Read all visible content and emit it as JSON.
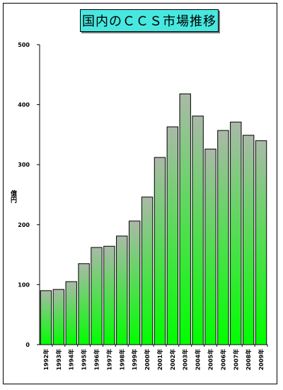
{
  "chart_data": {
    "type": "bar",
    "title": "国内のＣＣＳ市場推移",
    "ylabel": "億円",
    "xlabel": "",
    "ylim": [
      0,
      500
    ],
    "yticks": [
      0,
      100,
      200,
      300,
      400,
      500
    ],
    "categories": [
      "1992年",
      "1993年",
      "1994年",
      "1995年",
      "1996年",
      "1997年",
      "1998年",
      "1999年",
      "2000年",
      "2001年",
      "2002年",
      "2003年",
      "2004年",
      "2005年",
      "2006年",
      "2007年",
      "2008年",
      "2009年"
    ],
    "values": [
      90,
      92,
      105,
      135,
      162,
      164,
      181,
      206,
      246,
      312,
      363,
      418,
      381,
      326,
      357,
      371,
      349,
      340
    ],
    "grid": false,
    "legend": "none",
    "colors": {
      "bar_top": "#aab9a8",
      "bar_bottom": "#00ff00",
      "bar_stroke": "#000000",
      "title_bg": "#48e8e0"
    }
  }
}
